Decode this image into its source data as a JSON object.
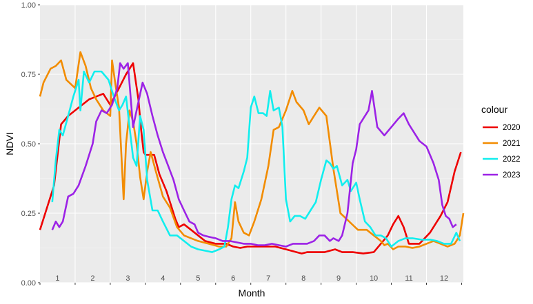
{
  "chart_data": {
    "type": "line",
    "xlabel": "Month",
    "ylabel": "NDVI",
    "xlim": [
      0.5,
      12.55
    ],
    "ylim": [
      0,
      1
    ],
    "y_ticks": [
      0,
      0.25,
      0.5,
      0.75,
      1
    ],
    "y_tick_labels": [
      "0.00",
      "0.25",
      "0.50",
      "0.75",
      "1.00"
    ],
    "month_labels": [
      "1",
      "2",
      "3",
      "4",
      "5",
      "6",
      "7",
      "8",
      "9",
      "10",
      "11",
      "12"
    ],
    "grid": true,
    "legend": {
      "title": "colour",
      "position": "right"
    },
    "series": [
      {
        "name": "2020",
        "color": "#ee0000",
        "x": [
          0.5,
          0.7,
          0.9,
          1.1,
          1.3,
          1.6,
          1.9,
          2.3,
          2.5,
          2.75,
          2.95,
          3.15,
          3.3,
          3.38,
          3.45,
          3.5,
          3.58,
          3.75,
          3.9,
          4.1,
          4.25,
          4.35,
          4.45,
          4.6,
          4.8,
          5.0,
          5.2,
          5.5,
          5.8,
          6.0,
          6.2,
          6.4,
          6.6,
          6.9,
          7.2,
          7.5,
          7.8,
          7.95,
          8.1,
          8.3,
          8.6,
          8.9,
          9.1,
          9.4,
          9.7,
          10.0,
          10.2,
          10.4,
          10.55,
          10.7,
          10.85,
          11.0,
          11.15,
          11.3,
          11.6,
          11.9,
          12.1,
          12.3,
          12.48
        ],
        "y": [
          0.19,
          0.27,
          0.35,
          0.57,
          0.6,
          0.63,
          0.66,
          0.68,
          0.64,
          0.7,
          0.75,
          0.79,
          0.66,
          0.55,
          0.47,
          0.46,
          0.46,
          0.46,
          0.39,
          0.33,
          0.27,
          0.23,
          0.2,
          0.21,
          0.19,
          0.17,
          0.15,
          0.14,
          0.14,
          0.13,
          0.125,
          0.13,
          0.13,
          0.13,
          0.13,
          0.12,
          0.11,
          0.105,
          0.11,
          0.11,
          0.11,
          0.12,
          0.11,
          0.11,
          0.105,
          0.11,
          0.14,
          0.17,
          0.21,
          0.24,
          0.2,
          0.14,
          0.14,
          0.14,
          0.18,
          0.24,
          0.29,
          0.4,
          0.47
        ]
      },
      {
        "name": "2021",
        "color": "#f28c00",
        "x": [
          0.5,
          0.6,
          0.8,
          0.95,
          1.1,
          1.25,
          1.5,
          1.65,
          1.8,
          1.95,
          2.1,
          2.3,
          2.5,
          2.55,
          2.65,
          2.75,
          2.88,
          2.95,
          3.05,
          3.15,
          3.25,
          3.35,
          3.45,
          3.55,
          3.65,
          3.8,
          4.0,
          4.2,
          4.4,
          4.6,
          4.8,
          5.0,
          5.3,
          5.6,
          5.8,
          5.95,
          6.05,
          6.15,
          6.3,
          6.45,
          6.6,
          6.8,
          7.0,
          7.15,
          7.3,
          7.5,
          7.68,
          7.8,
          8.0,
          8.15,
          8.3,
          8.45,
          8.65,
          8.85,
          9.05,
          9.3,
          9.55,
          9.8,
          10.0,
          10.2,
          10.3,
          10.4,
          10.55,
          10.7,
          10.9,
          11.1,
          11.3,
          11.5,
          11.7,
          11.9,
          12.1,
          12.3,
          12.45,
          12.55
        ],
        "y": [
          0.67,
          0.72,
          0.77,
          0.78,
          0.8,
          0.73,
          0.7,
          0.83,
          0.78,
          0.7,
          0.66,
          0.62,
          0.6,
          0.8,
          0.71,
          0.63,
          0.3,
          0.5,
          0.62,
          0.58,
          0.5,
          0.38,
          0.3,
          0.4,
          0.47,
          0.4,
          0.31,
          0.27,
          0.2,
          0.17,
          0.16,
          0.15,
          0.14,
          0.13,
          0.13,
          0.16,
          0.29,
          0.22,
          0.18,
          0.17,
          0.22,
          0.3,
          0.42,
          0.55,
          0.56,
          0.62,
          0.69,
          0.65,
          0.62,
          0.57,
          0.6,
          0.63,
          0.6,
          0.41,
          0.25,
          0.22,
          0.19,
          0.19,
          0.17,
          0.15,
          0.135,
          0.14,
          0.12,
          0.13,
          0.13,
          0.125,
          0.13,
          0.14,
          0.15,
          0.14,
          0.13,
          0.14,
          0.17,
          0.25
        ]
      },
      {
        "name": "2022",
        "color": "#11eeee",
        "x": [
          0.85,
          0.95,
          1.05,
          1.15,
          1.3,
          1.45,
          1.6,
          1.65,
          1.75,
          1.9,
          2.05,
          2.25,
          2.45,
          2.6,
          2.75,
          2.85,
          2.95,
          3.05,
          3.15,
          3.25,
          3.35,
          3.45,
          3.55,
          3.7,
          3.85,
          4.0,
          4.2,
          4.4,
          4.6,
          4.8,
          5.0,
          5.2,
          5.4,
          5.6,
          5.75,
          5.85,
          5.95,
          6.05,
          6.15,
          6.3,
          6.4,
          6.5,
          6.6,
          6.72,
          6.85,
          6.95,
          7.05,
          7.15,
          7.3,
          7.4,
          7.5,
          7.62,
          7.75,
          7.9,
          8.05,
          8.2,
          8.35,
          8.5,
          8.65,
          8.75,
          8.85,
          8.95,
          9.1,
          9.25,
          9.35,
          9.5,
          9.6,
          9.75,
          9.9,
          10.05,
          10.2,
          10.35,
          10.5,
          10.7,
          10.9,
          11.1,
          11.35,
          11.6,
          11.8,
          12.0,
          12.2,
          12.35,
          12.45
        ],
        "y": [
          0.29,
          0.44,
          0.55,
          0.53,
          0.6,
          0.67,
          0.73,
          0.62,
          0.76,
          0.72,
          0.76,
          0.76,
          0.73,
          0.67,
          0.62,
          0.64,
          0.67,
          0.56,
          0.45,
          0.42,
          0.6,
          0.55,
          0.37,
          0.26,
          0.26,
          0.22,
          0.17,
          0.17,
          0.15,
          0.13,
          0.12,
          0.115,
          0.11,
          0.12,
          0.13,
          0.2,
          0.3,
          0.35,
          0.34,
          0.4,
          0.45,
          0.63,
          0.67,
          0.61,
          0.61,
          0.6,
          0.69,
          0.62,
          0.63,
          0.56,
          0.3,
          0.22,
          0.24,
          0.24,
          0.23,
          0.26,
          0.29,
          0.37,
          0.44,
          0.43,
          0.41,
          0.42,
          0.35,
          0.37,
          0.33,
          0.36,
          0.3,
          0.22,
          0.2,
          0.17,
          0.17,
          0.16,
          0.13,
          0.15,
          0.16,
          0.16,
          0.155,
          0.155,
          0.15,
          0.14,
          0.14,
          0.18,
          0.15
        ]
      },
      {
        "name": "2023",
        "color": "#9c22e6",
        "x": [
          0.85,
          0.95,
          1.05,
          1.15,
          1.3,
          1.45,
          1.6,
          1.8,
          2.0,
          2.1,
          2.25,
          2.4,
          2.55,
          2.7,
          2.78,
          2.88,
          3.0,
          3.15,
          3.3,
          3.42,
          3.55,
          3.7,
          3.85,
          4.0,
          4.15,
          4.3,
          4.45,
          4.6,
          4.75,
          4.9,
          5.0,
          5.15,
          5.3,
          5.5,
          5.7,
          5.9,
          6.1,
          6.3,
          6.5,
          6.7,
          6.9,
          7.1,
          7.3,
          7.5,
          7.7,
          7.9,
          8.1,
          8.3,
          8.45,
          8.6,
          8.75,
          8.85,
          9.0,
          9.1,
          9.25,
          9.4,
          9.5,
          9.6,
          9.75,
          9.85,
          9.95,
          10.1,
          10.3,
          10.5,
          10.7,
          10.85,
          11.0,
          11.1,
          11.3,
          11.5,
          11.7,
          11.85,
          11.95,
          12.05,
          12.15,
          12.25,
          12.35
        ],
        "y": [
          0.19,
          0.22,
          0.2,
          0.22,
          0.31,
          0.32,
          0.35,
          0.42,
          0.5,
          0.58,
          0.62,
          0.61,
          0.64,
          0.7,
          0.79,
          0.77,
          0.79,
          0.56,
          0.65,
          0.72,
          0.68,
          0.6,
          0.53,
          0.47,
          0.42,
          0.37,
          0.3,
          0.26,
          0.22,
          0.21,
          0.18,
          0.17,
          0.165,
          0.16,
          0.15,
          0.15,
          0.145,
          0.14,
          0.14,
          0.135,
          0.135,
          0.14,
          0.135,
          0.13,
          0.14,
          0.14,
          0.14,
          0.15,
          0.17,
          0.17,
          0.15,
          0.16,
          0.15,
          0.17,
          0.25,
          0.43,
          0.48,
          0.57,
          0.6,
          0.62,
          0.69,
          0.56,
          0.53,
          0.56,
          0.59,
          0.61,
          0.57,
          0.55,
          0.51,
          0.49,
          0.43,
          0.37,
          0.28,
          0.24,
          0.23,
          0.2,
          0.21
        ]
      }
    ]
  }
}
